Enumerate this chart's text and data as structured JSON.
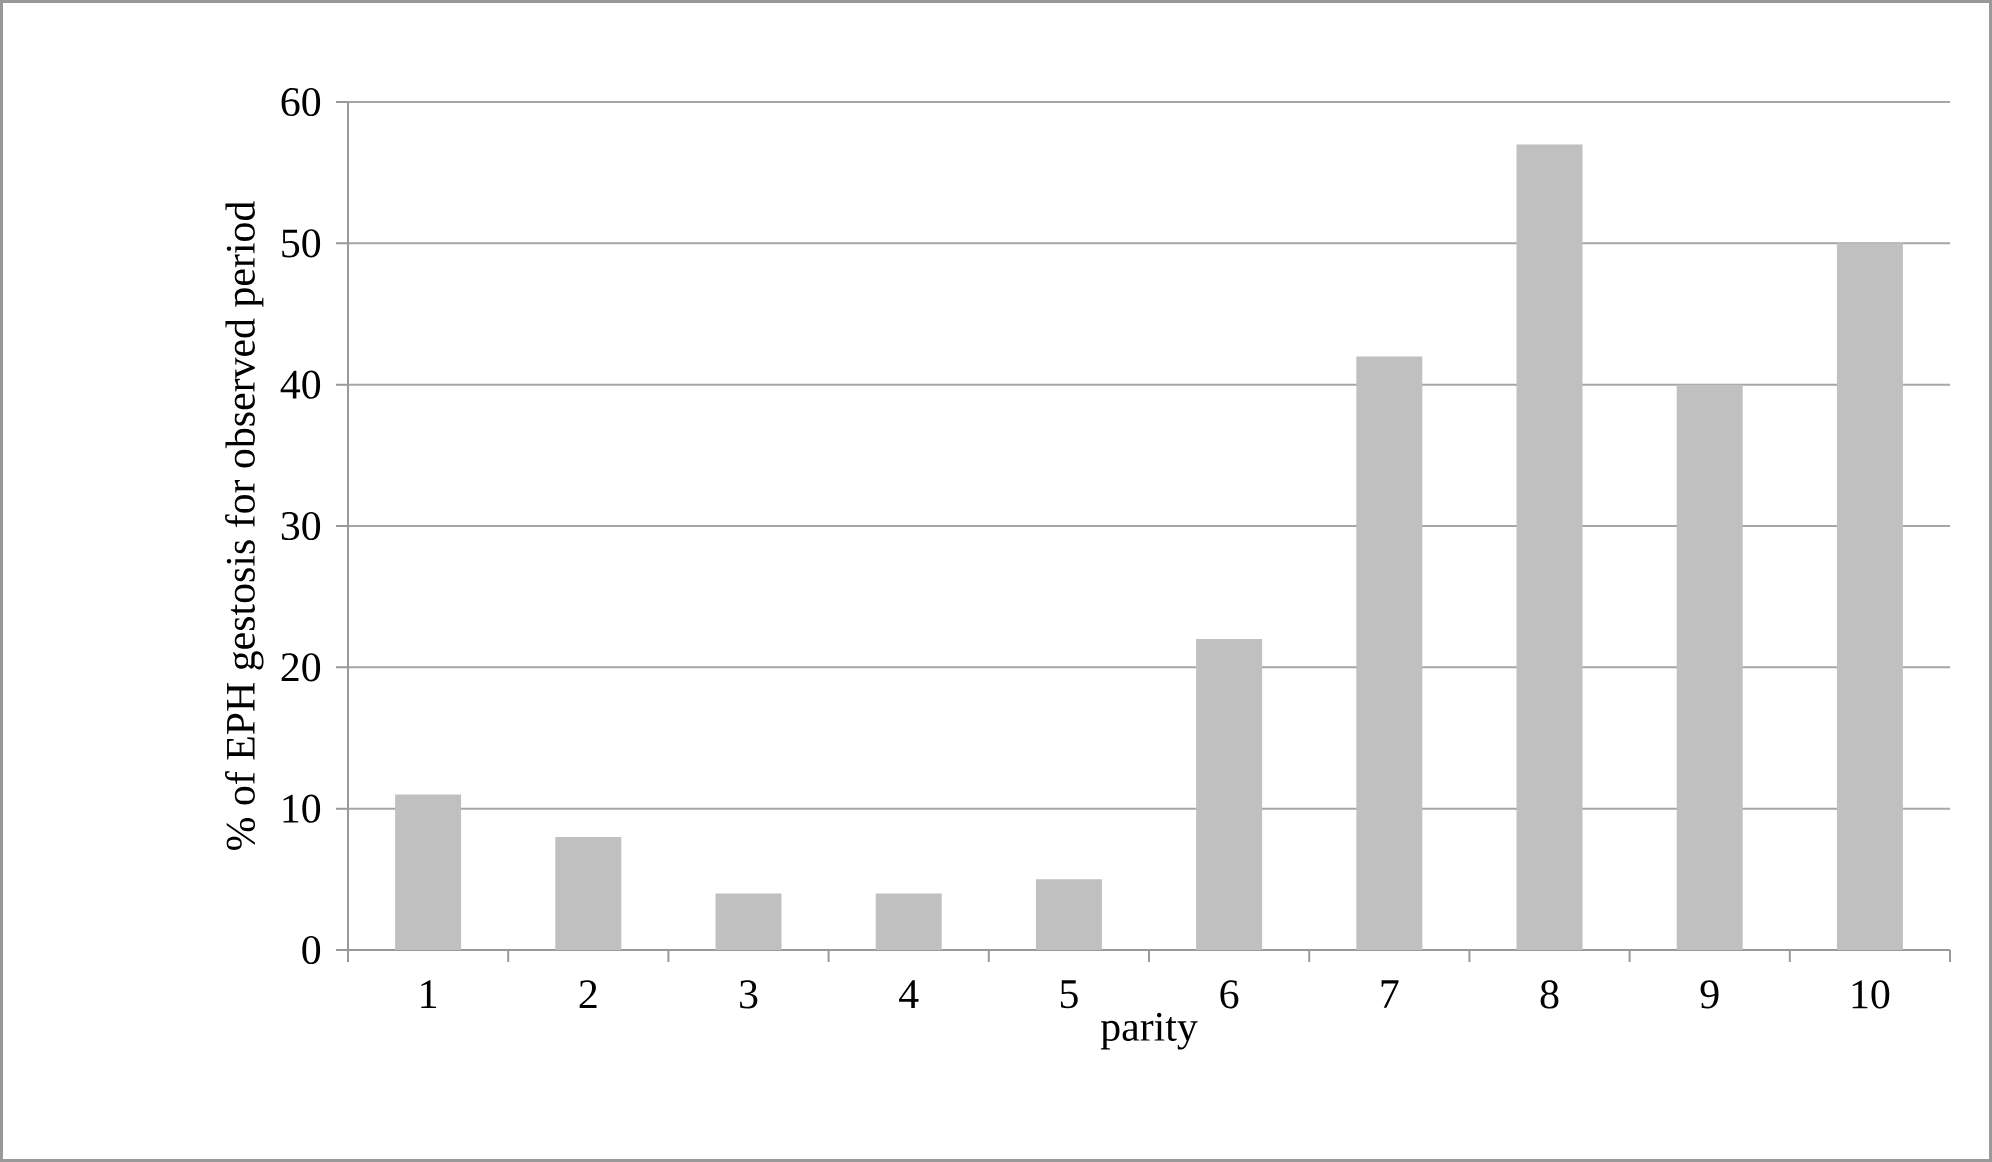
{
  "chart_data": {
    "type": "bar",
    "xlabel": "parity",
    "ylabel": "% of EPH gestosis for observed period",
    "categories": [
      "1",
      "2",
      "3",
      "4",
      "5",
      "6",
      "7",
      "8",
      "9",
      "10"
    ],
    "values": [
      11,
      8,
      4,
      4,
      5,
      22,
      42,
      57,
      40,
      50
    ],
    "color": "#c0c0c0",
    "ylim": [
      0,
      60
    ],
    "yticks": [
      0,
      10,
      20,
      30,
      40,
      50,
      60
    ],
    "grid": "y"
  }
}
